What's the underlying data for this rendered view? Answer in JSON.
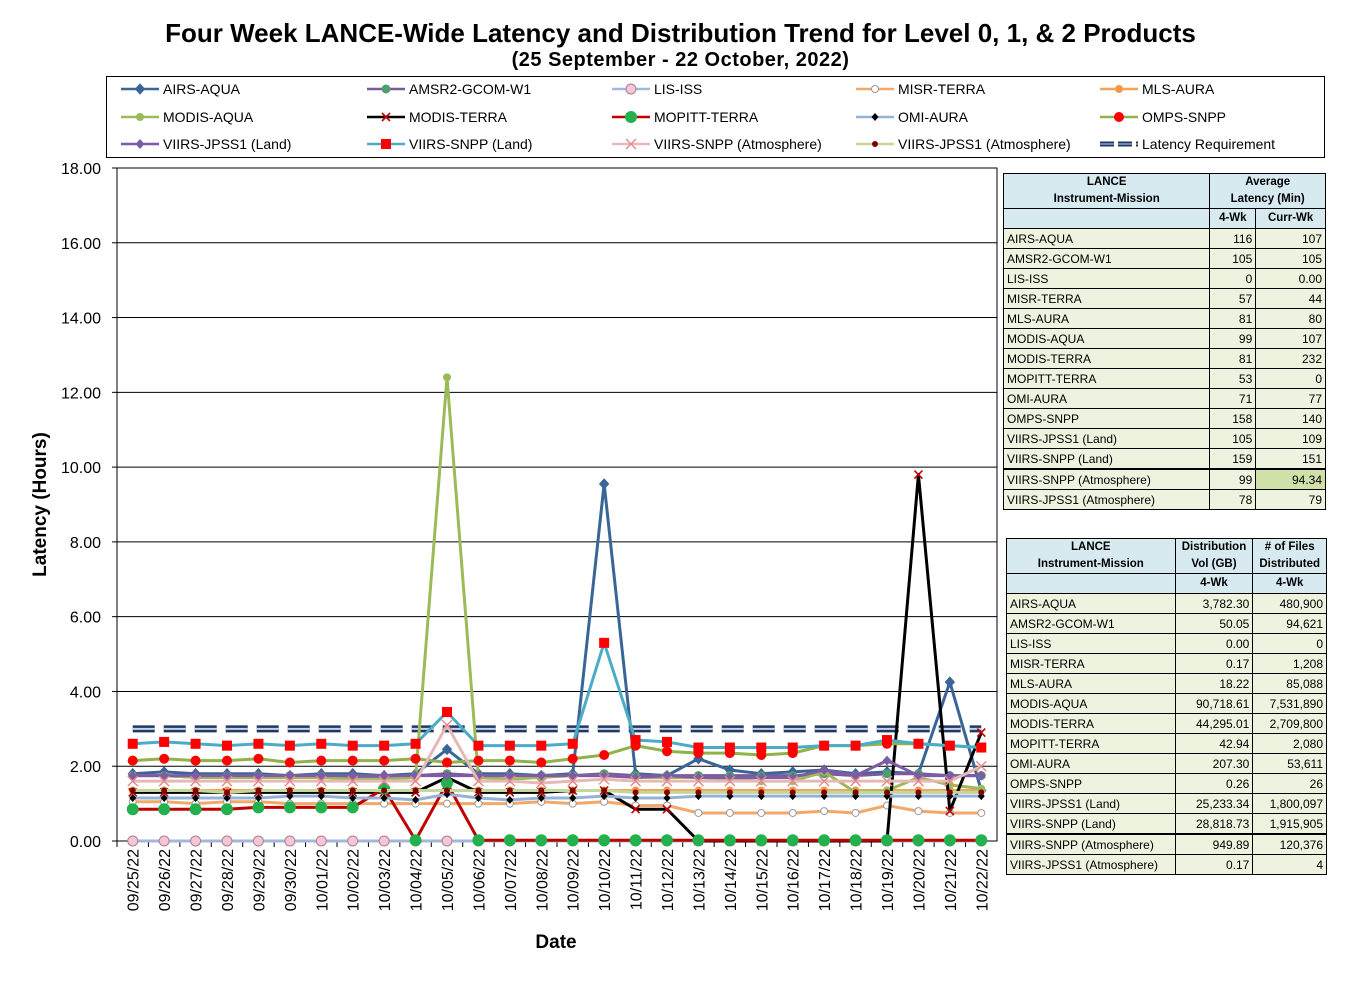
{
  "title": "Four Week LANCE-Wide Latency and Distribution Trend for Level 0, 1, & 2 Products",
  "subtitle": "(25  September   -  22  October,  2022)",
  "legend": [
    {
      "label": "AIRS-AQUA",
      "color": "#3a6597",
      "marker": "diamond"
    },
    {
      "label": "AMSR2-GCOM-W1",
      "color": "#7b5a9c",
      "marker": "circle-green"
    },
    {
      "label": "LIS-ISS",
      "color": "#a3b7dc",
      "marker": "circle-pink"
    },
    {
      "label": "MISR-TERRA",
      "color": "#f2a86a",
      "marker": "circle-white"
    },
    {
      "label": "MLS-AURA",
      "color": "#f6a35a",
      "marker": "circle-orange"
    },
    {
      "label": "MODIS-AQUA",
      "color": "#9bbb59",
      "marker": "circle-lightgreen"
    },
    {
      "label": "MODIS-TERRA",
      "color": "#000000",
      "marker": "x-red"
    },
    {
      "label": "MOPITT-TERRA",
      "color": "#c00000",
      "marker": "circle-green2"
    },
    {
      "label": "OMI-AURA",
      "color": "#95b3d7",
      "marker": "diamond-black"
    },
    {
      "label": "OMPS-SNPP",
      "color": "#8fb24a",
      "marker": "circle-red"
    },
    {
      "label": "VIIRS-JPSS1 (Land)",
      "color": "#7e5ba6",
      "marker": "diamond-purple"
    },
    {
      "label": "VIIRS-SNPP (Land)",
      "color": "#4bacc6",
      "marker": "square-red"
    },
    {
      "label": "VIIRS-SNPP (Atmosphere)",
      "color": "#e6b9b8",
      "marker": "x-pink"
    },
    {
      "label": "VIIRS-JPSS1 (Atmosphere)",
      "color": "#c4d79b",
      "marker": "circle-darkred"
    },
    {
      "label": "Latency Requirement",
      "color": "#1f3864",
      "marker": "dash"
    }
  ],
  "chart_data": {
    "type": "line",
    "xlabel": "Date",
    "ylabel": "Latency (Hours)",
    "ylim": [
      0,
      18
    ],
    "yticks": [
      "0.00",
      "2.00",
      "4.00",
      "6.00",
      "8.00",
      "10.00",
      "12.00",
      "14.00",
      "16.00",
      "18.00"
    ],
    "categories": [
      "09/25/22",
      "09/26/22",
      "09/27/22",
      "09/28/22",
      "09/29/22",
      "09/30/22",
      "10/01/22",
      "10/02/22",
      "10/03/22",
      "10/04/22",
      "10/05/22",
      "10/06/22",
      "10/07/22",
      "10/08/22",
      "10/09/22",
      "10/10/22",
      "10/11/22",
      "10/12/22",
      "10/13/22",
      "10/14/22",
      "10/15/22",
      "10/16/22",
      "10/17/22",
      "10/18/22",
      "10/19/22",
      "10/20/22",
      "10/21/22",
      "10/22/22"
    ],
    "series": [
      {
        "name": "Latency Requirement",
        "values": [
          3,
          3,
          3,
          3,
          3,
          3,
          3,
          3,
          3,
          3,
          3,
          3,
          3,
          3,
          3,
          3,
          3,
          3,
          3,
          3,
          3,
          3,
          3,
          3,
          3,
          3,
          3,
          3
        ]
      },
      {
        "name": "AIRS-AQUA",
        "values": [
          1.8,
          1.85,
          1.8,
          1.8,
          1.8,
          1.75,
          1.8,
          1.8,
          1.75,
          1.8,
          2.45,
          1.8,
          1.8,
          1.75,
          1.8,
          9.55,
          1.8,
          1.75,
          2.2,
          1.9,
          1.8,
          1.85,
          1.9,
          1.8,
          1.85,
          1.8,
          4.25,
          1.35
        ]
      },
      {
        "name": "AMSR2-GCOM-W1",
        "values": [
          1.75,
          1.75,
          1.7,
          1.75,
          1.75,
          1.75,
          1.75,
          1.7,
          1.7,
          1.75,
          1.8,
          1.75,
          1.75,
          1.75,
          1.75,
          1.8,
          1.75,
          1.75,
          1.75,
          1.75,
          1.75,
          1.75,
          1.8,
          1.75,
          1.8,
          1.8,
          1.75,
          1.75
        ]
      },
      {
        "name": "LIS-ISS",
        "values": [
          0,
          0,
          0,
          0,
          0,
          0,
          0,
          0,
          0,
          0,
          0,
          0,
          0,
          0,
          0,
          0,
          0,
          0,
          0,
          0,
          0,
          0,
          0,
          0,
          0,
          0,
          0,
          0
        ]
      },
      {
        "name": "MISR-TERRA",
        "values": [
          1.05,
          1.05,
          1.0,
          1.05,
          1.05,
          1.0,
          1.0,
          1.0,
          1.0,
          1.0,
          1.0,
          1.0,
          1.0,
          1.05,
          1.0,
          1.05,
          0.95,
          0.95,
          0.75,
          0.75,
          0.75,
          0.75,
          0.8,
          0.75,
          0.95,
          0.8,
          0.75,
          0.75
        ]
      },
      {
        "name": "MLS-AURA",
        "values": [
          1.35,
          1.35,
          1.35,
          1.35,
          1.35,
          1.35,
          1.35,
          1.35,
          1.35,
          1.35,
          1.35,
          1.35,
          1.35,
          1.35,
          1.35,
          1.35,
          1.35,
          1.35,
          1.35,
          1.35,
          1.35,
          1.35,
          1.35,
          1.35,
          1.35,
          1.35,
          1.35,
          1.35
        ]
      },
      {
        "name": "MODIS-AQUA",
        "values": [
          1.75,
          1.75,
          1.7,
          1.7,
          1.7,
          1.7,
          1.7,
          1.65,
          1.65,
          1.7,
          12.4,
          1.7,
          1.65,
          1.7,
          1.75,
          1.75,
          1.7,
          1.7,
          1.7,
          1.65,
          1.6,
          1.6,
          1.85,
          1.3,
          1.35,
          1.7,
          1.5,
          1.4
        ]
      },
      {
        "name": "MODIS-TERRA",
        "values": [
          1.3,
          1.3,
          1.3,
          1.3,
          1.3,
          1.3,
          1.3,
          1.3,
          1.3,
          1.3,
          1.7,
          1.3,
          1.3,
          1.3,
          1.35,
          1.35,
          0.85,
          0.85,
          0,
          0,
          0,
          0,
          0,
          0,
          0,
          9.8,
          0.8,
          2.9
        ]
      },
      {
        "name": "MOPITT-TERRA",
        "values": [
          0.85,
          0.85,
          0.85,
          0.85,
          0.9,
          0.9,
          0.9,
          0.9,
          1.4,
          0.02,
          1.55,
          0.02,
          0.02,
          0.02,
          0.02,
          0.02,
          0.02,
          0.02,
          0.02,
          0.02,
          0.02,
          0.02,
          0.02,
          0.02,
          0.02,
          0.02,
          0.02,
          0.02
        ]
      },
      {
        "name": "OMI-AURA",
        "values": [
          1.15,
          1.15,
          1.15,
          1.15,
          1.15,
          1.2,
          1.2,
          1.15,
          1.15,
          1.1,
          1.25,
          1.15,
          1.1,
          1.15,
          1.15,
          1.2,
          1.15,
          1.15,
          1.2,
          1.2,
          1.2,
          1.2,
          1.2,
          1.2,
          1.2,
          1.2,
          1.2,
          1.2
        ]
      },
      {
        "name": "OMPS-SNPP",
        "values": [
          2.15,
          2.2,
          2.15,
          2.15,
          2.2,
          2.1,
          2.15,
          2.15,
          2.15,
          2.2,
          2.1,
          2.15,
          2.15,
          2.1,
          2.2,
          2.3,
          2.55,
          2.4,
          2.35,
          2.35,
          2.3,
          2.35,
          2.55,
          2.55,
          2.6,
          2.6,
          2.55,
          2.5
        ]
      },
      {
        "name": "VIIRS-JPSS1 (Land)",
        "values": [
          1.75,
          1.75,
          1.75,
          1.75,
          1.75,
          1.75,
          1.75,
          1.75,
          1.75,
          1.75,
          1.75,
          1.75,
          1.75,
          1.75,
          1.75,
          1.75,
          1.7,
          1.75,
          1.7,
          1.7,
          1.7,
          1.7,
          1.9,
          1.75,
          2.15,
          1.75,
          1.75,
          1.75
        ]
      },
      {
        "name": "VIIRS-SNPP (Land)",
        "values": [
          2.6,
          2.65,
          2.6,
          2.55,
          2.6,
          2.55,
          2.6,
          2.55,
          2.55,
          2.6,
          3.45,
          2.55,
          2.55,
          2.55,
          2.6,
          5.3,
          2.7,
          2.65,
          2.5,
          2.5,
          2.5,
          2.5,
          2.55,
          2.55,
          2.7,
          2.6,
          2.55,
          2.5
        ]
      },
      {
        "name": "VIIRS-SNPP (Atmosphere)",
        "values": [
          1.6,
          1.6,
          1.6,
          1.6,
          1.6,
          1.6,
          1.6,
          1.6,
          1.6,
          1.6,
          3.1,
          1.6,
          1.6,
          1.55,
          1.6,
          1.65,
          1.6,
          1.6,
          1.6,
          1.6,
          1.6,
          1.6,
          1.6,
          1.6,
          1.6,
          1.6,
          1.6,
          2.0
        ]
      },
      {
        "name": "VIIRS-JPSS1 (Atmosphere)",
        "values": [
          1.35,
          1.35,
          1.35,
          1.3,
          1.35,
          1.35,
          1.35,
          1.35,
          1.35,
          1.35,
          1.35,
          1.35,
          1.35,
          1.35,
          1.35,
          1.35,
          1.3,
          1.3,
          1.3,
          1.3,
          1.3,
          1.3,
          1.3,
          1.3,
          1.3,
          1.3,
          1.3,
          1.3
        ]
      }
    ]
  },
  "latency_table": {
    "h_mission": [
      "LANCE",
      "Instrument-Mission"
    ],
    "h_avg": [
      "Average",
      "Latency (Min)"
    ],
    "h_4wk": "4-Wk",
    "h_curr": "Curr-Wk",
    "rows": [
      {
        "name": "AIRS-AQUA",
        "wk4": "116",
        "curr": "107"
      },
      {
        "name": "AMSR2-GCOM-W1",
        "wk4": "105",
        "curr": "105"
      },
      {
        "name": "LIS-ISS",
        "wk4": "0",
        "curr": "0.00"
      },
      {
        "name": "MISR-TERRA",
        "wk4": "57",
        "curr": "44"
      },
      {
        "name": "MLS-AURA",
        "wk4": "81",
        "curr": "80"
      },
      {
        "name": "MODIS-AQUA",
        "wk4": "99",
        "curr": "107"
      },
      {
        "name": "MODIS-TERRA",
        "wk4": "81",
        "curr": "232"
      },
      {
        "name": "MOPITT-TERRA",
        "wk4": "53",
        "curr": "0"
      },
      {
        "name": "OMI-AURA",
        "wk4": "71",
        "curr": "77"
      },
      {
        "name": "OMPS-SNPP",
        "wk4": "158",
        "curr": "140"
      },
      {
        "name": "VIIRS-JPSS1 (Land)",
        "wk4": "105",
        "curr": "109"
      },
      {
        "name": "VIIRS-SNPP (Land)",
        "wk4": "159",
        "curr": "151"
      },
      {
        "name": "VIIRS-SNPP (Atmosphere)",
        "wk4": "99",
        "curr": "94.34"
      },
      {
        "name": "VIIRS-JPSS1 (Atmosphere)",
        "wk4": "78",
        "curr": "79"
      }
    ]
  },
  "distribution_table": {
    "h_mission": [
      "LANCE",
      "Instrument-Mission"
    ],
    "h_vol": [
      "Distribution",
      "Vol (GB)"
    ],
    "h_files": [
      "# of Files",
      "Distributed"
    ],
    "h_4wk": "4-Wk",
    "rows": [
      {
        "name": "AIRS-AQUA",
        "vol": "3,782.30",
        "files": "480,900"
      },
      {
        "name": "AMSR2-GCOM-W1",
        "vol": "50.05",
        "files": "94,621"
      },
      {
        "name": "LIS-ISS",
        "vol": "0.00",
        "files": "0"
      },
      {
        "name": "MISR-TERRA",
        "vol": "0.17",
        "files": "1,208"
      },
      {
        "name": "MLS-AURA",
        "vol": "18.22",
        "files": "85,088"
      },
      {
        "name": "MODIS-AQUA",
        "vol": "90,718.61",
        "files": "7,531,890"
      },
      {
        "name": "MODIS-TERRA",
        "vol": "44,295.01",
        "files": "2,709,800"
      },
      {
        "name": "MOPITT-TERRA",
        "vol": "42.94",
        "files": "2,080"
      },
      {
        "name": "OMI-AURA",
        "vol": "207.30",
        "files": "53,611"
      },
      {
        "name": "OMPS-SNPP",
        "vol": "0.26",
        "files": "26"
      },
      {
        "name": "VIIRS-JPSS1 (Land)",
        "vol": "25,233.34",
        "files": "1,800,097"
      },
      {
        "name": "VIIRS-SNPP (Land)",
        "vol": "28,818.73",
        "files": "1,915,905"
      },
      {
        "name": "VIIRS-SNPP (Atmosphere)",
        "vol": "949.89",
        "files": "120,376"
      },
      {
        "name": "VIIRS-JPSS1 (Atmosphere)",
        "vol": "0.17",
        "files": "4"
      }
    ]
  }
}
